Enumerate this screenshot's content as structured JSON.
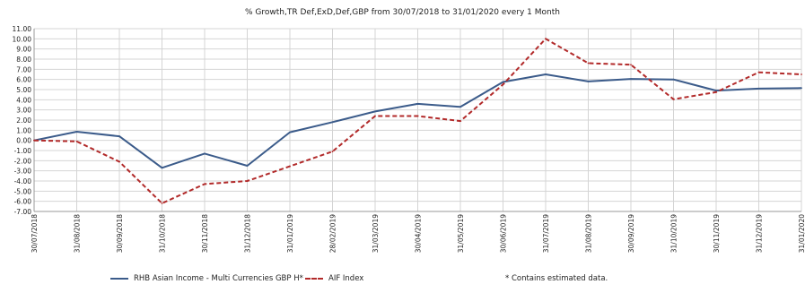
{
  "chart_data": {
    "type": "line",
    "title": "% Growth,TR Def,ExD,Def,GBP from 30/07/2018 to 31/01/2020 every 1 Month",
    "categories": [
      "30/07/2018",
      "31/08/2018",
      "30/09/2018",
      "31/10/2018",
      "30/11/2018",
      "31/12/2018",
      "31/01/2019",
      "28/02/2019",
      "31/03/2019",
      "30/04/2019",
      "31/05/2019",
      "30/06/2019",
      "31/07/2019",
      "31/08/2019",
      "30/09/2019",
      "31/10/2019",
      "30/11/2019",
      "31/12/2019",
      "31/01/2020"
    ],
    "yticks": [
      "11.00",
      "10.00",
      "9.00",
      "8.00",
      "7.00",
      "6.00",
      "5.00",
      "4.00",
      "3.00",
      "2.00",
      "1.00",
      "0.00",
      "-1.00",
      "-2.00",
      "-3.00",
      "-4.00",
      "-5.00",
      "-6.00",
      "-7.00"
    ],
    "ylim": [
      -7,
      11
    ],
    "grid": true,
    "series": [
      {
        "name": "RHB Asian Income - Multi Currencies GBP H*",
        "color": "#3b5b8a",
        "style": "solid",
        "values": [
          0.0,
          0.85,
          0.4,
          -2.7,
          -1.3,
          -2.5,
          0.8,
          1.8,
          2.85,
          3.6,
          3.3,
          5.75,
          6.5,
          5.8,
          6.05,
          6.0,
          4.9,
          5.1,
          5.15
        ]
      },
      {
        "name": "AIF Index",
        "color": "#b22a2a",
        "style": "dashed",
        "values": [
          0.0,
          -0.1,
          -2.1,
          -6.2,
          -4.3,
          -4.0,
          -2.55,
          -1.1,
          2.4,
          2.4,
          1.9,
          5.5,
          10.0,
          7.6,
          7.45,
          4.05,
          4.75,
          6.7,
          6.5
        ]
      }
    ]
  },
  "legend": {
    "series1": "RHB Asian Income - Multi Currencies GBP H*",
    "series2": "AIF Index",
    "note": "* Contains estimated data."
  }
}
